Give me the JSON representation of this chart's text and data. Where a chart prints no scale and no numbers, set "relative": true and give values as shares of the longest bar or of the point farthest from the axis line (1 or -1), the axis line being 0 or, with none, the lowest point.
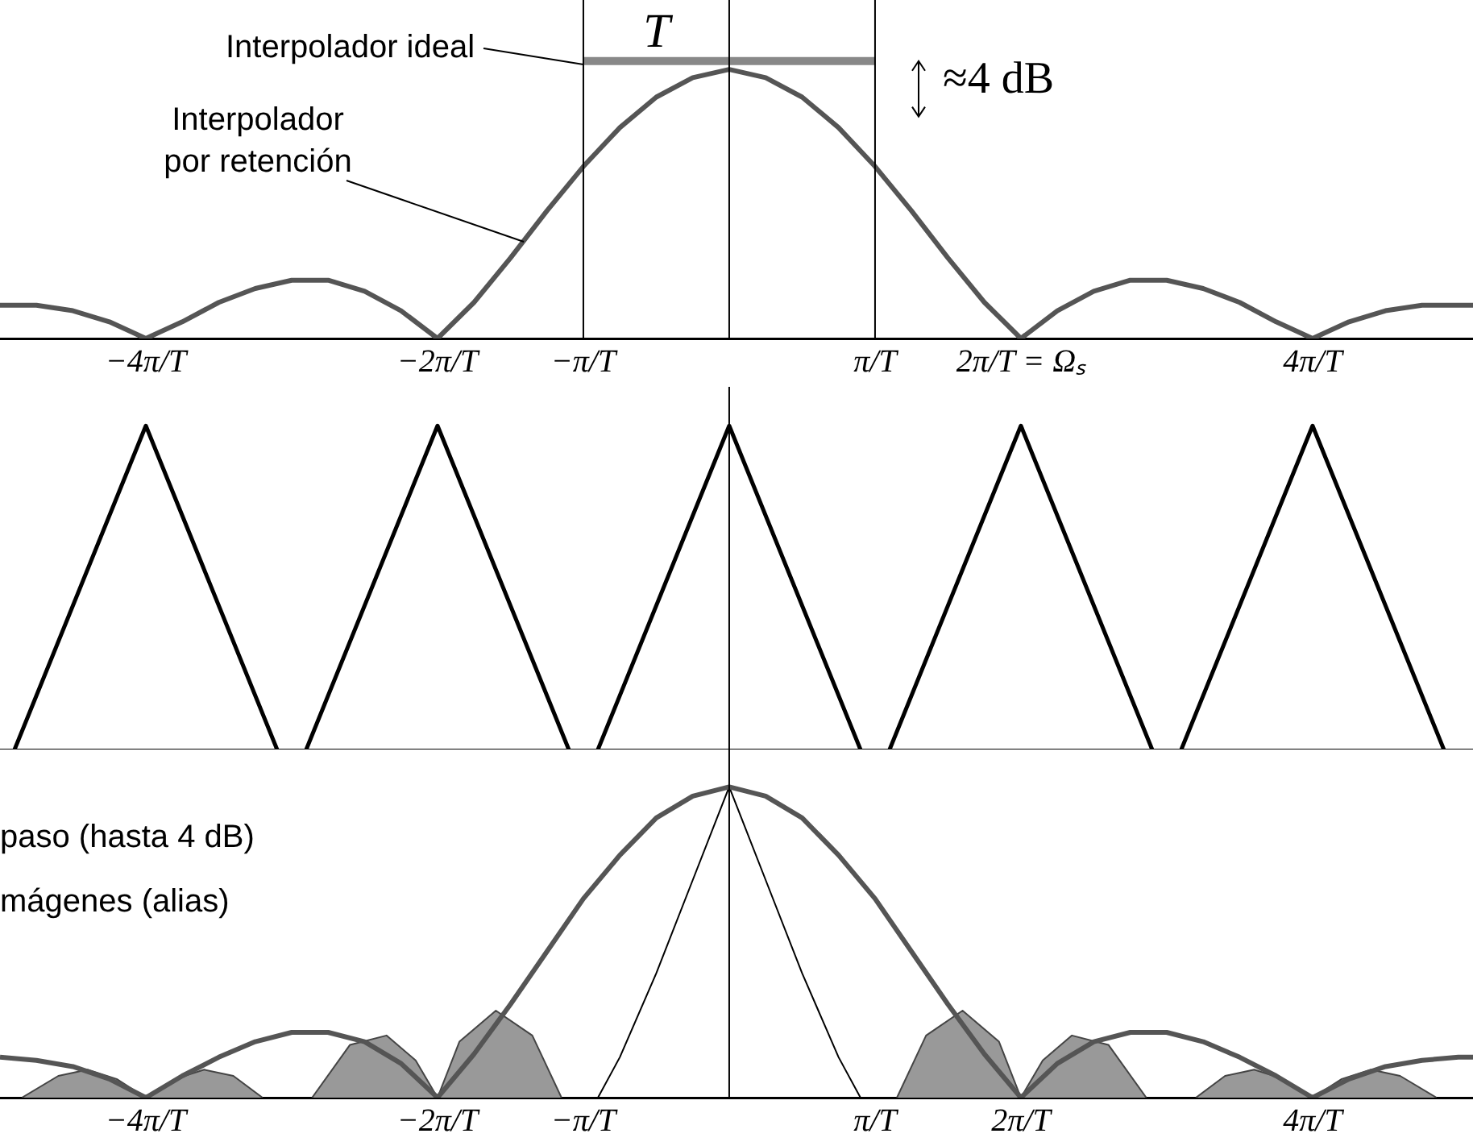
{
  "chart_data": [
    {
      "type": "line",
      "relative": true,
      "tick_labels": "x",
      "grid": false,
      "legend": false,
      "title": "T",
      "annotations": [
        "Interpolador ideal",
        "≈4 dB",
        "Interpolador\npor retención"
      ],
      "xlim": [
        -5,
        5.1
      ],
      "xticks": [
        {
          "value": -4,
          "label": "−4π/T"
        },
        {
          "value": -2,
          "label": "−2π/T"
        },
        {
          "value": -1,
          "label": "−π/T"
        },
        {
          "value": 1,
          "label": "π/T"
        },
        {
          "value": 2,
          "label": "2π/T = Ωₛ"
        },
        {
          "value": 4,
          "label": "4π/T"
        }
      ],
      "ref_lines": [
        {
          "axis": "x",
          "value": -1,
          "color": "#000000"
        },
        {
          "axis": "x",
          "value": 0,
          "color": "#000000"
        },
        {
          "axis": "x",
          "value": 1,
          "color": "#000000"
        }
      ],
      "series": [
        {
          "color": "#555555",
          "x": [
            -5,
            -4.75,
            -4.5,
            -4.25,
            -4,
            -3.75,
            -3.5,
            -3.25,
            -3,
            -2.75,
            -2.5,
            -2.25,
            -2,
            -1.75,
            -1.5,
            -1.25,
            -1,
            -0.75,
            -0.5,
            -0.25,
            0,
            0.25,
            0.5,
            0.75,
            1,
            1.25,
            1.5,
            1.75,
            2,
            2.25,
            2.5,
            2.75,
            3,
            3.25,
            3.5,
            3.75,
            4,
            4.25,
            4.5,
            4.75,
            5,
            5.1
          ],
          "values": [
            0.12,
            0.12,
            0.1,
            0.06,
            0,
            0.06,
            0.13,
            0.18,
            0.21,
            0.21,
            0.17,
            0.1,
            0,
            0.13,
            0.29,
            0.46,
            0.62,
            0.76,
            0.87,
            0.94,
            0.97,
            0.94,
            0.87,
            0.76,
            0.62,
            0.46,
            0.29,
            0.13,
            0,
            0.1,
            0.17,
            0.21,
            0.21,
            0.18,
            0.13,
            0.06,
            0,
            0.06,
            0.1,
            0.12,
            0.12,
            0.12
          ]
        },
        {
          "color": "#888888",
          "x": [
            -1,
            1
          ],
          "values": [
            1,
            1
          ]
        }
      ]
    },
    {
      "type": "line",
      "relative": true,
      "tick_labels": false,
      "grid": false,
      "legend": false,
      "xlim": [
        -5,
        5.1
      ],
      "ref_lines": [
        {
          "axis": "x",
          "value": 0,
          "color": "#000000"
        }
      ],
      "series": [
        {
          "color": "#000000",
          "x": [
            -4.9,
            -4,
            -3.1,
            -3,
            -2.9,
            -2,
            -1.1,
            -1,
            -0.9,
            0,
            0.9,
            1,
            1.1,
            2,
            2.9,
            3,
            3.1,
            4,
            4.9
          ],
          "values": [
            0,
            1,
            0,
            null,
            0,
            1,
            0,
            null,
            0,
            1,
            0,
            null,
            0,
            1,
            0,
            null,
            0,
            1,
            0
          ]
        }
      ]
    },
    {
      "type": "line",
      "relative": true,
      "tick_labels": "x",
      "grid": false,
      "legend": false,
      "annotations": [
        "paso (hasta 4 dB)",
        "mágenes (alias)"
      ],
      "xlim": [
        -5,
        5.1
      ],
      "xticks": [
        {
          "value": -4,
          "label": "−4π/T"
        },
        {
          "value": -2,
          "label": "−2π/T"
        },
        {
          "value": -1,
          "label": "−π/T"
        },
        {
          "value": 1,
          "label": "π/T"
        },
        {
          "value": 2,
          "label": "2π/T"
        },
        {
          "value": 4,
          "label": "4π/T"
        }
      ],
      "ref_lines": [
        {
          "axis": "x",
          "value": 0,
          "color": "#000000"
        }
      ],
      "series": [
        {
          "color": "#555555",
          "x": [
            -5,
            -4.75,
            -4.5,
            -4.25,
            -4,
            -3.75,
            -3.5,
            -3.25,
            -3,
            -2.75,
            -2.5,
            -2.25,
            -2,
            -1.75,
            -1.5,
            -1.25,
            -1,
            -0.75,
            -0.5,
            -0.25,
            0,
            0.25,
            0.5,
            0.75,
            1,
            1.25,
            1.5,
            1.75,
            2,
            2.25,
            2.5,
            2.75,
            3,
            3.25,
            3.5,
            3.75,
            4,
            4.25,
            4.5,
            4.75,
            5,
            5.1
          ],
          "values": [
            0.13,
            0.12,
            0.1,
            0.06,
            0,
            0.07,
            0.13,
            0.18,
            0.21,
            0.21,
            0.18,
            0.11,
            0,
            0.14,
            0.3,
            0.47,
            0.64,
            0.78,
            0.9,
            0.97,
            1,
            0.97,
            0.9,
            0.78,
            0.64,
            0.47,
            0.3,
            0.14,
            0,
            0.11,
            0.18,
            0.21,
            0.21,
            0.18,
            0.13,
            0.07,
            0,
            0.06,
            0.1,
            0.12,
            0.13,
            0.13
          ]
        },
        {
          "color": "#000000",
          "x": [
            -0.9,
            -0.75,
            -0.5,
            -0.25,
            0,
            0.25,
            0.5,
            0.75,
            0.9
          ],
          "values": [
            0,
            0.13,
            0.4,
            0.7,
            1,
            0.7,
            0.4,
            0.13,
            0
          ]
        },
        {
          "type": "area",
          "color": "#999999",
          "x": [
            -4.85,
            -4.6,
            -4.4,
            -4.2,
            -4,
            -3.8,
            -3.6,
            -3.4,
            -3.2,
            -3.1,
            -2.86,
            -2.6,
            -2.35,
            -2.15,
            -2,
            -1.85,
            -1.6,
            -1.35,
            -1.15,
            -1,
            1.15,
            1.35,
            1.6,
            1.85,
            2,
            2.15,
            2.35,
            2.6,
            2.86,
            3.1,
            3.2,
            3.4,
            3.6,
            3.8,
            4,
            4.2,
            4.4,
            4.6,
            4.85
          ],
          "values": [
            0,
            0.07,
            0.09,
            0.06,
            0,
            0.06,
            0.09,
            0.07,
            0,
            null,
            0,
            0.17,
            0.2,
            0.12,
            0,
            0.18,
            0.28,
            0.2,
            0,
            null,
            0,
            0.2,
            0.28,
            0.18,
            0,
            0.12,
            0.2,
            0.17,
            0,
            null,
            0,
            0.07,
            0.09,
            0.06,
            0,
            0.06,
            0.09,
            0.07,
            0
          ]
        }
      ]
    }
  ]
}
